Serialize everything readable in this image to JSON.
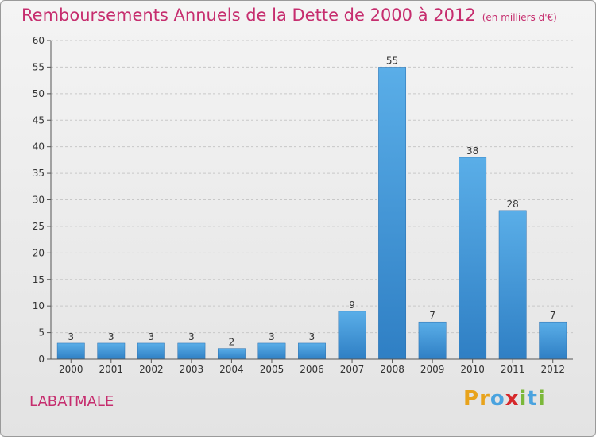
{
  "title": "Remboursements Annuels de la Dette de 2000 à 2012",
  "subtitle": "(en milliers d'€)",
  "commune": "LABATMALE",
  "brand": {
    "letters": [
      "P",
      "r",
      "o",
      "x",
      "i",
      "t",
      "i"
    ],
    "colors": [
      "#e8a31c",
      "#e8a31c",
      "#4aa3df",
      "#d6282b",
      "#7bb83a",
      "#4aa3df",
      "#7bb83a"
    ]
  },
  "chart_data": {
    "type": "bar",
    "categories": [
      "2000",
      "2001",
      "2002",
      "2003",
      "2004",
      "2005",
      "2006",
      "2007",
      "2008",
      "2009",
      "2010",
      "2011",
      "2012"
    ],
    "values": [
      3,
      3,
      3,
      3,
      2,
      3,
      3,
      9,
      55,
      7,
      38,
      28,
      7
    ],
    "ylim": [
      0,
      60
    ],
    "yticks": [
      0,
      5,
      10,
      15,
      20,
      25,
      30,
      35,
      40,
      45,
      50,
      55,
      60
    ],
    "grid": true,
    "bar_color": "#3d8fd6"
  }
}
